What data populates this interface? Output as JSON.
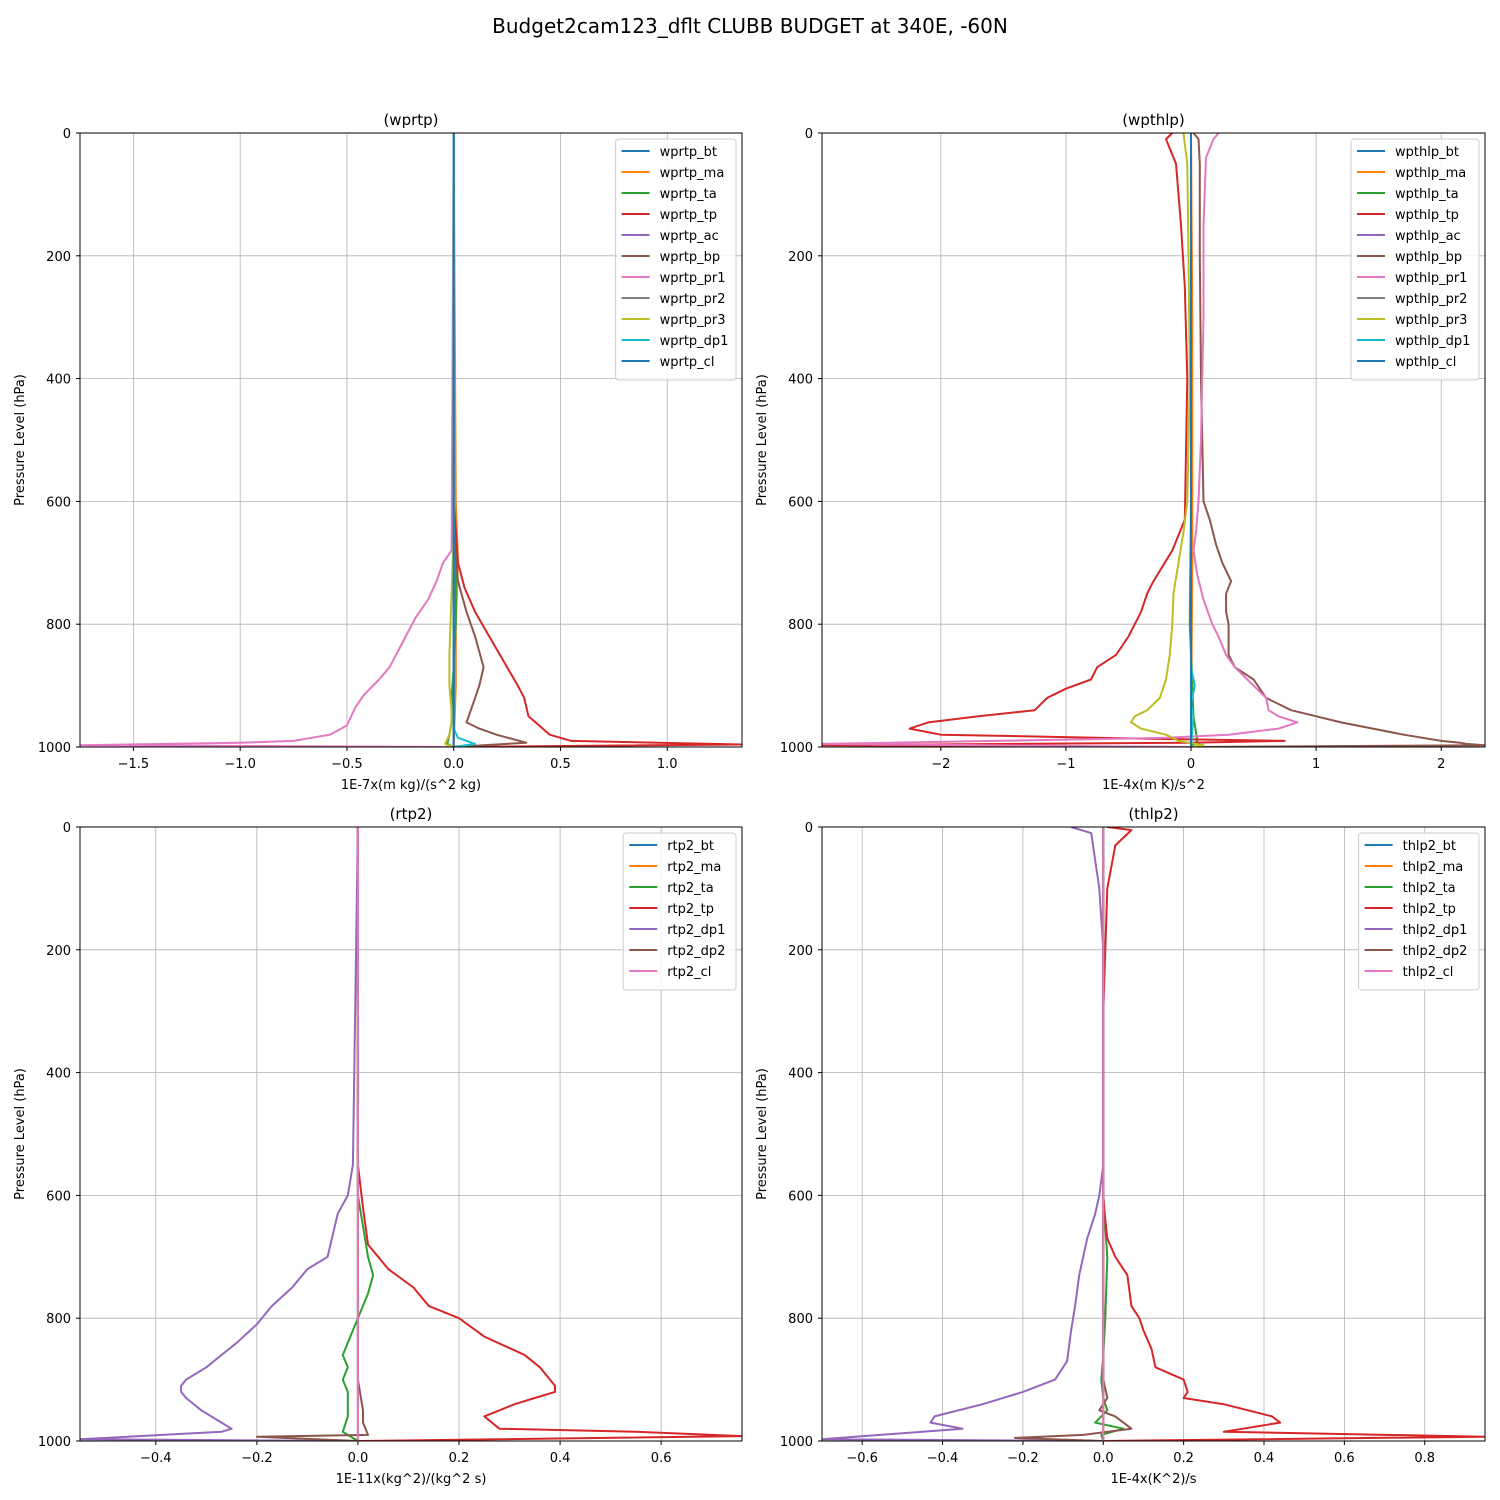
{
  "figure": {
    "title": "Budget2cam123_dflt CLUBB BUDGET at 340E, -60N"
  },
  "colors": [
    "#1f77b4",
    "#ff7f0e",
    "#2ca02c",
    "#d62728",
    "#9467bd",
    "#8c564b",
    "#e377c2",
    "#7f7f7f",
    "#bcbd22",
    "#17becf",
    "#1f77b4"
  ],
  "chart_data": [
    {
      "type": "line",
      "title": "(wprtp)",
      "xlabel": "1E-7x(m kg)/(s^2 kg)",
      "ylabel": "Pressure Level (hPa)",
      "xlim": [
        -1.75,
        1.35
      ],
      "ylim": [
        1000,
        0
      ],
      "xticks": [
        -1.5,
        -1.0,
        -0.5,
        0.0,
        0.5,
        1.0
      ],
      "xtick_labels": [
        "−1.5",
        "−1.0",
        "−0.5",
        "0.0",
        "0.5",
        "1.0"
      ],
      "yticks": [
        0,
        200,
        400,
        600,
        800,
        1000
      ],
      "ytick_labels": [
        "0",
        "200",
        "400",
        "600",
        "800",
        "1000"
      ],
      "grid": true,
      "legend": "top-right",
      "series": [
        {
          "name": "wprtp_bt",
          "x": [
            0,
            0
          ],
          "y": [
            0,
            1000
          ]
        },
        {
          "name": "wprtp_ma",
          "x": [
            0,
            0.01,
            0.02,
            0.01,
            0.01,
            0
          ],
          "y": [
            0,
            600,
            700,
            800,
            900,
            1000
          ]
        },
        {
          "name": "wprtp_ta",
          "x": [
            0,
            0,
            0.01,
            0.01,
            0,
            -0.01,
            -0.01,
            -0.02,
            -0.03,
            0
          ],
          "y": [
            0,
            600,
            700,
            800,
            870,
            920,
            960,
            980,
            995,
            1000
          ]
        },
        {
          "name": "wprtp_tp",
          "x": [
            0,
            0,
            0.02,
            0.05,
            0.1,
            0.2,
            0.3,
            0.33,
            0.35,
            0.45,
            0.55,
            1.35,
            0
          ],
          "y": [
            0,
            600,
            700,
            740,
            780,
            840,
            900,
            920,
            950,
            980,
            990,
            996,
            1000
          ]
        },
        {
          "name": "wprtp_ac",
          "x": [
            0,
            0
          ],
          "y": [
            0,
            1000
          ]
        },
        {
          "name": "wprtp_bp",
          "x": [
            0,
            0,
            0.02,
            0.06,
            0.1,
            0.14,
            0.12,
            0.1,
            0.08,
            0.06,
            0.12,
            0.2,
            0.34,
            0
          ],
          "y": [
            0,
            650,
            730,
            780,
            820,
            870,
            900,
            920,
            940,
            960,
            970,
            980,
            993,
            1000
          ]
        },
        {
          "name": "wprtp_pr1",
          "x": [
            0,
            -0.01,
            -0.05,
            -0.08,
            -0.12,
            -0.18,
            -0.24,
            -0.3,
            -0.35,
            -0.42,
            -0.46,
            -0.48,
            -0.5,
            -0.58,
            -0.75,
            -1.0,
            -1.75,
            0
          ],
          "y": [
            0,
            680,
            700,
            730,
            760,
            790,
            830,
            870,
            890,
            915,
            935,
            950,
            965,
            980,
            990,
            993,
            997,
            1000
          ]
        },
        {
          "name": "wprtp_pr2",
          "x": [
            0,
            0
          ],
          "y": [
            0,
            1000
          ]
        },
        {
          "name": "wprtp_pr3",
          "x": [
            0,
            0,
            -0.01,
            -0.02,
            -0.02,
            -0.01,
            -0.01,
            -0.02,
            -0.04,
            0
          ],
          "y": [
            0,
            650,
            750,
            850,
            900,
            940,
            960,
            980,
            995,
            1000
          ]
        },
        {
          "name": "wprtp_dp1",
          "x": [
            0,
            0,
            0,
            0.02,
            0.1,
            0
          ],
          "y": [
            0,
            900,
            970,
            985,
            995,
            1000
          ]
        },
        {
          "name": "wprtp_cl",
          "x": [
            0,
            0
          ],
          "y": [
            0,
            1000
          ]
        }
      ]
    },
    {
      "type": "line",
      "title": "(wpthlp)",
      "xlabel": "1E-4x(m K)/s^2",
      "ylabel": "Pressure Level (hPa)",
      "xlim": [
        -2.95,
        2.35
      ],
      "ylim": [
        1000,
        0
      ],
      "xticks": [
        -2,
        -1,
        0,
        1,
        2
      ],
      "xtick_labels": [
        "−2",
        "−1",
        "0",
        "1",
        "2"
      ],
      "yticks": [
        0,
        200,
        400,
        600,
        800,
        1000
      ],
      "ytick_labels": [
        "0",
        "200",
        "400",
        "600",
        "800",
        "1000"
      ],
      "grid": true,
      "legend": "top-right",
      "series": [
        {
          "name": "wpthlp_bt",
          "x": [
            0,
            0
          ],
          "y": [
            0,
            1000
          ]
        },
        {
          "name": "wpthlp_ma",
          "x": [
            0,
            0.01,
            0.01,
            0
          ],
          "y": [
            0,
            300,
            700,
            1000
          ]
        },
        {
          "name": "wpthlp_ta",
          "x": [
            0,
            0,
            -0.01,
            0.02,
            0.05,
            0
          ],
          "y": [
            0,
            600,
            800,
            950,
            990,
            1000
          ]
        },
        {
          "name": "wpthlp_tp",
          "x": [
            -0.15,
            -0.2,
            -0.12,
            -0.08,
            -0.05,
            -0.03,
            -0.05,
            -0.15,
            -0.3,
            -0.35,
            -0.4,
            -0.5,
            -0.6,
            -0.75,
            -0.8,
            -1.0,
            -1.15,
            -1.25,
            -1.7,
            -2.1,
            -2.25,
            -2.0,
            -1.5,
            -0.5,
            0.75,
            0,
            -2.95,
            0
          ],
          "y": [
            0,
            10,
            50,
            150,
            250,
            400,
            630,
            680,
            730,
            750,
            780,
            820,
            850,
            870,
            890,
            905,
            920,
            940,
            950,
            960,
            970,
            980,
            982,
            986,
            990,
            993,
            997,
            1000
          ]
        },
        {
          "name": "wpthlp_ac",
          "x": [
            0,
            0
          ],
          "y": [
            0,
            1000
          ]
        },
        {
          "name": "wpthlp_bp",
          "x": [
            0.02,
            0.06,
            0.07,
            0.07,
            0.08,
            0.1,
            0.15,
            0.2,
            0.25,
            0.32,
            0.28,
            0.28,
            0.3,
            0.3,
            0.35,
            0.5,
            0.6,
            0.8,
            1.2,
            1.7,
            2.0,
            2.15,
            2.2,
            2.35,
            0
          ],
          "y": [
            0,
            10,
            50,
            200,
            400,
            600,
            630,
            670,
            700,
            730,
            750,
            780,
            800,
            850,
            870,
            890,
            920,
            940,
            960,
            980,
            990,
            993,
            995,
            997,
            1000
          ]
        },
        {
          "name": "wpthlp_pr1",
          "x": [
            0.22,
            0.18,
            0.12,
            0.1,
            0.1,
            0.08,
            0.06,
            0.04,
            0.02,
            0.05,
            0.1,
            0.17,
            0.22,
            0.28,
            0.35,
            0.4,
            0.45,
            0.5,
            0.6,
            0.62,
            0.7,
            0.85,
            0.7,
            0.3,
            -0.2,
            -2.95,
            0
          ],
          "y": [
            0,
            10,
            40,
            150,
            300,
            500,
            600,
            650,
            680,
            720,
            760,
            800,
            820,
            850,
            870,
            880,
            890,
            900,
            920,
            940,
            950,
            960,
            970,
            980,
            985,
            995,
            1000
          ]
        },
        {
          "name": "wpthlp_pr2",
          "x": [
            0,
            0
          ],
          "y": [
            0,
            1000
          ]
        },
        {
          "name": "wpthlp_pr3",
          "x": [
            -0.06,
            -0.03,
            -0.02,
            -0.01,
            -0.03,
            -0.06,
            -0.1,
            -0.14,
            -0.15,
            -0.17,
            -0.2,
            -0.25,
            -0.35,
            -0.45,
            -0.48,
            -0.4,
            -0.2,
            -0.1,
            0.1,
            0
          ],
          "y": [
            0,
            50,
            200,
            400,
            600,
            650,
            700,
            750,
            800,
            850,
            890,
            920,
            940,
            950,
            960,
            970,
            980,
            990,
            997,
            1000
          ]
        },
        {
          "name": "wpthlp_dp1",
          "x": [
            0,
            0,
            0.03,
            0,
            0.02,
            0
          ],
          "y": [
            0,
            870,
            900,
            930,
            950,
            1000
          ]
        },
        {
          "name": "wpthlp_cl",
          "x": [
            0,
            0
          ],
          "y": [
            0,
            1000
          ]
        }
      ]
    },
    {
      "type": "line",
      "title": "(rtp2)",
      "xlabel": "1E-11x(kg^2)/(kg^2 s)",
      "ylabel": "Pressure Level (hPa)",
      "xlim": [
        -0.55,
        0.76
      ],
      "ylim": [
        1000,
        0
      ],
      "xticks": [
        -0.4,
        -0.2,
        0.0,
        0.2,
        0.4,
        0.6
      ],
      "xtick_labels": [
        "−0.4",
        "−0.2",
        "0.0",
        "0.2",
        "0.4",
        "0.6"
      ],
      "yticks": [
        0,
        200,
        400,
        600,
        800,
        1000
      ],
      "ytick_labels": [
        "0",
        "200",
        "400",
        "600",
        "800",
        "1000"
      ],
      "grid": true,
      "legend": "top-right",
      "series": [
        {
          "name": "rtp2_bt",
          "x": [
            0,
            0
          ],
          "y": [
            0,
            1000
          ]
        },
        {
          "name": "rtp2_ma",
          "x": [
            0,
            0
          ],
          "y": [
            0,
            1000
          ]
        },
        {
          "name": "rtp2_ta",
          "x": [
            0,
            0,
            0.02,
            0.03,
            0.02,
            0,
            -0.02,
            -0.03,
            -0.02,
            -0.03,
            -0.02,
            -0.02,
            -0.03,
            0
          ],
          "y": [
            0,
            600,
            700,
            730,
            760,
            800,
            840,
            860,
            880,
            900,
            920,
            960,
            985,
            1000
          ]
        },
        {
          "name": "rtp2_tp",
          "x": [
            0,
            0,
            0.01,
            0.02,
            0.06,
            0.11,
            0.14,
            0.2,
            0.25,
            0.33,
            0.36,
            0.38,
            0.39,
            0.39,
            0.35,
            0.31,
            0.25,
            0.28,
            0.55,
            0.76,
            0
          ],
          "y": [
            0,
            550,
            620,
            680,
            720,
            750,
            780,
            800,
            830,
            860,
            880,
            900,
            910,
            920,
            930,
            940,
            960,
            980,
            985,
            992,
            1000
          ]
        },
        {
          "name": "rtp2_dp1",
          "x": [
            0,
            -0.01,
            -0.02,
            -0.04,
            -0.06,
            -0.1,
            -0.13,
            -0.17,
            -0.2,
            -0.24,
            -0.27,
            -0.3,
            -0.34,
            -0.35,
            -0.35,
            -0.34,
            -0.31,
            -0.27,
            -0.25,
            -0.27,
            -0.55,
            0
          ],
          "y": [
            0,
            550,
            600,
            630,
            700,
            720,
            750,
            780,
            810,
            840,
            860,
            880,
            900,
            910,
            920,
            930,
            950,
            970,
            980,
            985,
            997,
            1000
          ]
        },
        {
          "name": "rtp2_dp2",
          "x": [
            0,
            0,
            0.01,
            0.01,
            0.02,
            -0.2,
            0
          ],
          "y": [
            0,
            900,
            950,
            970,
            990,
            993,
            1000
          ]
        },
        {
          "name": "rtp2_cl",
          "x": [
            0,
            0
          ],
          "y": [
            0,
            1000
          ]
        }
      ]
    },
    {
      "type": "line",
      "title": "(thlp2)",
      "xlabel": "1E-4x(K^2)/s",
      "ylabel": "Pressure Level (hPa)",
      "xlim": [
        -0.7,
        0.95
      ],
      "ylim": [
        1000,
        0
      ],
      "xticks": [
        -0.6,
        -0.4,
        -0.2,
        0.0,
        0.2,
        0.4,
        0.6,
        0.8
      ],
      "xtick_labels": [
        "−0.6",
        "−0.4",
        "−0.2",
        "0.0",
        "0.2",
        "0.4",
        "0.6",
        "0.8"
      ],
      "yticks": [
        0,
        200,
        400,
        600,
        800,
        1000
      ],
      "ytick_labels": [
        "0",
        "200",
        "400",
        "600",
        "800",
        "1000"
      ],
      "grid": true,
      "legend": "top-right",
      "series": [
        {
          "name": "thlp2_bt",
          "x": [
            0,
            0
          ],
          "y": [
            0,
            1000
          ]
        },
        {
          "name": "thlp2_ma",
          "x": [
            0,
            0
          ],
          "y": [
            0,
            1000
          ]
        },
        {
          "name": "thlp2_ta",
          "x": [
            0,
            0,
            0.01,
            0.005,
            0,
            -0.005,
            0,
            0.01,
            -0.02,
            0.05,
            -0.005,
            0
          ],
          "y": [
            0,
            600,
            700,
            800,
            860,
            900,
            930,
            950,
            970,
            980,
            990,
            1000
          ]
        },
        {
          "name": "thlp2_tp",
          "x": [
            0.01,
            0.07,
            0.03,
            0.01,
            0.005,
            0,
            0,
            0.005,
            0.01,
            0.03,
            0.06,
            0.07,
            0.09,
            0.1,
            0.12,
            0.13,
            0.2,
            0.21,
            0.2,
            0.3,
            0.42,
            0.44,
            0.3,
            0.95,
            0
          ],
          "y": [
            0,
            5,
            30,
            100,
            200,
            300,
            600,
            640,
            670,
            700,
            730,
            780,
            800,
            820,
            850,
            880,
            900,
            920,
            930,
            940,
            960,
            970,
            985,
            993,
            1000
          ]
        },
        {
          "name": "thlp2_dp1",
          "x": [
            -0.08,
            -0.03,
            -0.01,
            0,
            0,
            0,
            -0.01,
            -0.02,
            -0.04,
            -0.05,
            -0.06,
            -0.07,
            -0.08,
            -0.09,
            -0.12,
            -0.2,
            -0.3,
            -0.42,
            -0.43,
            -0.35,
            -0.7,
            0
          ],
          "y": [
            0,
            10,
            100,
            200,
            400,
            550,
            600,
            630,
            670,
            700,
            730,
            780,
            820,
            870,
            900,
            920,
            940,
            960,
            970,
            980,
            997,
            1000
          ]
        },
        {
          "name": "thlp2_dp2",
          "x": [
            0,
            0,
            0.01,
            -0.01,
            0.03,
            0.07,
            -0.05,
            -0.22,
            0
          ],
          "y": [
            0,
            900,
            930,
            950,
            960,
            980,
            990,
            995,
            1000
          ]
        },
        {
          "name": "thlp2_cl",
          "x": [
            0,
            0
          ],
          "y": [
            0,
            1000
          ]
        }
      ]
    }
  ]
}
